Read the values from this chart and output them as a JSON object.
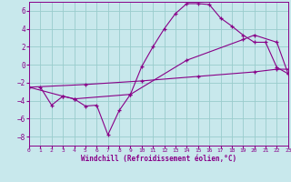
{
  "background_color": "#c8e8ec",
  "grid_color": "#99cccc",
  "line_color": "#880088",
  "xlim": [
    0,
    23
  ],
  "ylim": [
    -9,
    7
  ],
  "yticks": [
    -8,
    -6,
    -4,
    -2,
    0,
    2,
    4,
    6
  ],
  "xticks": [
    0,
    1,
    2,
    3,
    4,
    5,
    6,
    7,
    8,
    9,
    10,
    11,
    12,
    13,
    14,
    15,
    16,
    17,
    18,
    19,
    20,
    21,
    22,
    23
  ],
  "xlabel": "Windchill (Refroidissement éolien,°C)",
  "line1_x": [
    1,
    2,
    3,
    4,
    5,
    6,
    7,
    8,
    9,
    10,
    11,
    12,
    13,
    14,
    15,
    16,
    17,
    18,
    19,
    20,
    21,
    22,
    23
  ],
  "line1_y": [
    -2.5,
    -4.5,
    -3.5,
    -3.8,
    -4.6,
    -4.5,
    -7.8,
    -5.1,
    -3.3,
    -0.2,
    2.0,
    4.0,
    5.7,
    6.8,
    6.8,
    6.7,
    5.2,
    4.3,
    3.3,
    2.5,
    2.5,
    -0.3,
    -1.0
  ],
  "line2_x": [
    0,
    3,
    4,
    9,
    14,
    19,
    20,
    22,
    23
  ],
  "line2_y": [
    -2.5,
    -3.5,
    -3.8,
    -3.3,
    0.5,
    2.8,
    3.3,
    2.5,
    -1.0
  ],
  "line3_x": [
    0,
    5,
    10,
    15,
    20,
    22,
    23
  ],
  "line3_y": [
    -2.5,
    -2.2,
    -1.8,
    -1.3,
    -0.8,
    -0.5,
    -0.5
  ]
}
